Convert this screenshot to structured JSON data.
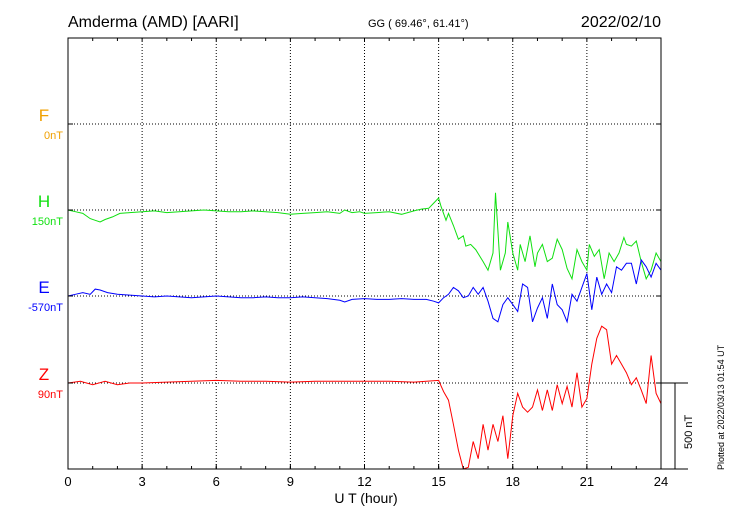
{
  "header": {
    "station": "Amderma (AMD)  [AARI]",
    "coords": "GG ( 69.46°,  61.41°)",
    "date": "2022/02/10"
  },
  "footer": {
    "plotted": "Plotted at 2022/03/13 01:54 UT"
  },
  "colors": {
    "F": "#f0a000",
    "H": "#10e010",
    "E": "#0000ff",
    "Z": "#ff0000",
    "grid": "#000000",
    "axis": "#000000"
  },
  "chart_data": {
    "type": "line",
    "xlabel": "U T (hour)",
    "xlim": [
      0,
      24
    ],
    "xticks": [
      0,
      3,
      6,
      9,
      12,
      15,
      18,
      21,
      24
    ],
    "scale_bar_label": "500 nT",
    "scale_bar_nT": 500,
    "grid": true,
    "series": [
      {
        "name": "F",
        "baseline_label": "0nT",
        "values": []
      },
      {
        "name": "H",
        "baseline_label": "150nT",
        "x": [
          0,
          0.3,
          0.6,
          0.9,
          1.1,
          1.3,
          1.5,
          1.8,
          2.1,
          2.5,
          3,
          3.5,
          4,
          4.5,
          5,
          5.5,
          6,
          6.5,
          7,
          7.5,
          8,
          8.5,
          9,
          9.5,
          10,
          10.5,
          11,
          11.2,
          11.5,
          11.8,
          12,
          12.5,
          13,
          13.5,
          14,
          14.3,
          14.6,
          14.8,
          15,
          15.1,
          15.3,
          15.4,
          15.6,
          15.8,
          16,
          16.1,
          16.3,
          16.5,
          16.8,
          17.0,
          17.2,
          17.3,
          17.5,
          17.7,
          17.8,
          18.0,
          18.2,
          18.3,
          18.5,
          18.7,
          18.9,
          19.0,
          19.2,
          19.4,
          19.6,
          19.8,
          20.0,
          20.2,
          20.4,
          20.6,
          20.8,
          21.0,
          21.1,
          21.3,
          21.5,
          21.7,
          21.9,
          22.1,
          22.3,
          22.5,
          22.6,
          22.8,
          23.0,
          23.2,
          23.4,
          23.6,
          23.8,
          24.0
        ],
        "values": [
          150,
          140,
          130,
          100,
          90,
          80,
          95,
          110,
          130,
          135,
          140,
          145,
          135,
          140,
          145,
          150,
          145,
          140,
          140,
          145,
          140,
          135,
          125,
          130,
          135,
          140,
          130,
          150,
          135,
          140,
          130,
          135,
          140,
          125,
          145,
          155,
          160,
          190,
          220,
          170,
          90,
          130,
          60,
          -20,
          0,
          -60,
          -50,
          -80,
          -150,
          -200,
          -100,
          250,
          -200,
          -100,
          80,
          -100,
          -200,
          -50,
          -150,
          0,
          -180,
          -100,
          -50,
          -150,
          -130,
          -20,
          -80,
          -190,
          -250,
          -80,
          -150,
          -200,
          -50,
          -120,
          -80,
          -250,
          -100,
          -150,
          -100,
          -10,
          -50,
          -60,
          -30,
          -150,
          -250,
          -200,
          -100,
          -150
        ]
      },
      {
        "name": "E",
        "baseline_label": "-570nT",
        "x": [
          0,
          0.3,
          0.6,
          0.9,
          1.1,
          1.3,
          1.6,
          2,
          2.5,
          3,
          3.5,
          4,
          4.5,
          5,
          5.5,
          6,
          6.5,
          7,
          7.5,
          8,
          8.5,
          9,
          9.5,
          10,
          10.5,
          11,
          11.2,
          11.5,
          12,
          12.5,
          13,
          13.5,
          14,
          14.5,
          14.8,
          15,
          15.2,
          15.4,
          15.6,
          15.8,
          16,
          16.2,
          16.4,
          16.6,
          16.8,
          17.0,
          17.2,
          17.4,
          17.6,
          17.8,
          18.0,
          18.2,
          18.4,
          18.6,
          18.8,
          19.0,
          19.2,
          19.4,
          19.6,
          19.8,
          20.0,
          20.2,
          20.4,
          20.6,
          20.8,
          21.0,
          21.2,
          21.4,
          21.6,
          21.8,
          22.0,
          22.2,
          22.4,
          22.6,
          22.8,
          23.0,
          23.2,
          23.4,
          23.6,
          23.8,
          24.0
        ],
        "values": [
          -570,
          -560,
          -550,
          -560,
          -530,
          -535,
          -550,
          -560,
          -565,
          -570,
          -575,
          -570,
          -575,
          -580,
          -575,
          -570,
          -575,
          -580,
          -580,
          -575,
          -580,
          -580,
          -575,
          -580,
          -585,
          -595,
          -605,
          -590,
          -585,
          -590,
          -590,
          -585,
          -590,
          -590,
          -600,
          -610,
          -580,
          -560,
          -520,
          -540,
          -580,
          -570,
          -520,
          -560,
          -520,
          -600,
          -700,
          -720,
          -620,
          -580,
          -620,
          -660,
          -500,
          -520,
          -720,
          -640,
          -580,
          -700,
          -500,
          -620,
          -650,
          -720,
          -560,
          -600,
          -520,
          -440,
          -650,
          -460,
          -560,
          -500,
          -550,
          -400,
          -420,
          -380,
          -380,
          -500,
          -360,
          -400,
          -460,
          -380,
          -420
        ]
      },
      {
        "name": "Z",
        "baseline_label": "90nT",
        "x": [
          0,
          0.5,
          1,
          1.5,
          2,
          2.5,
          3,
          4,
          5,
          6,
          7,
          8,
          9,
          10,
          11,
          12,
          13,
          14,
          15,
          15.2,
          15.4,
          15.6,
          15.8,
          16,
          16.2,
          16.4,
          16.6,
          16.8,
          17,
          17.2,
          17.4,
          17.6,
          17.8,
          18,
          18.2,
          18.4,
          18.6,
          18.8,
          19,
          19.2,
          19.4,
          19.6,
          19.8,
          20,
          20.2,
          20.4,
          20.6,
          20.8,
          21,
          21.2,
          21.4,
          21.6,
          21.8,
          22,
          22.2,
          22.4,
          22.6,
          22.8,
          23,
          23.2,
          23.4,
          23.6,
          23.8,
          24
        ],
        "values": [
          90,
          100,
          80,
          100,
          80,
          90,
          90,
          95,
          100,
          105,
          100,
          100,
          95,
          100,
          100,
          100,
          100,
          95,
          105,
          40,
          -10,
          -150,
          -300,
          -430,
          -400,
          -250,
          -350,
          -150,
          -300,
          -150,
          -250,
          -100,
          -350,
          -100,
          30,
          -50,
          -80,
          -50,
          50,
          -70,
          50,
          -70,
          80,
          -30,
          70,
          -50,
          150,
          -50,
          0,
          200,
          350,
          420,
          400,
          200,
          250,
          200,
          150,
          80,
          120,
          50,
          -30,
          250,
          30,
          -30
        ]
      }
    ]
  }
}
